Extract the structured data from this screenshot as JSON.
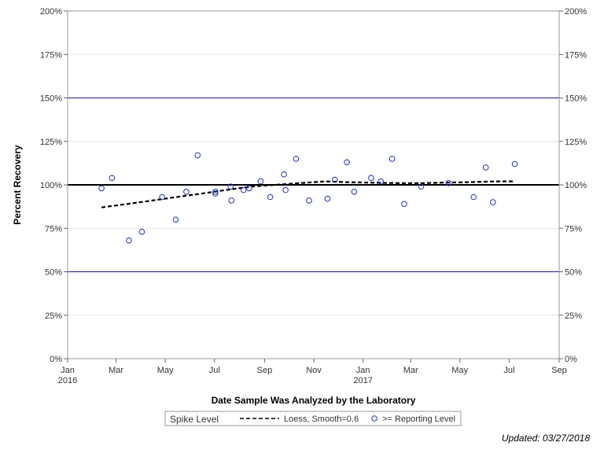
{
  "chart_data": {
    "type": "scatter",
    "title": "",
    "xlabel": "Date Sample Was Analyzed by the Laboratory",
    "ylabel": "Percent Recovery",
    "ylim": [
      0,
      200
    ],
    "xlim": [
      "2016-01-01",
      "2017-09-01"
    ],
    "y_ticks": [
      0,
      25,
      50,
      75,
      100,
      125,
      150,
      175,
      200
    ],
    "y_tick_labels": [
      "0%",
      "25%",
      "50%",
      "75%",
      "100%",
      "125%",
      "150%",
      "175%",
      "200%"
    ],
    "x_ticks": [
      {
        "date": "2016-01-01",
        "label": "Jan",
        "year": "2016"
      },
      {
        "date": "2016-03-01",
        "label": "Mar"
      },
      {
        "date": "2016-05-01",
        "label": "May"
      },
      {
        "date": "2016-07-01",
        "label": "Jul"
      },
      {
        "date": "2016-09-01",
        "label": "Sep"
      },
      {
        "date": "2016-11-01",
        "label": "Nov"
      },
      {
        "date": "2017-01-01",
        "label": "Jan",
        "year": "2017"
      },
      {
        "date": "2017-03-01",
        "label": "Mar"
      },
      {
        "date": "2017-05-01",
        "label": "May"
      },
      {
        "date": "2017-07-01",
        "label": "Jul"
      },
      {
        "date": "2017-09-01",
        "label": "Sep"
      }
    ],
    "reference_lines": [
      {
        "y": 150,
        "color": "#1a1a8c",
        "width": 1
      },
      {
        "y": 100,
        "color": "#000000",
        "width": 2
      },
      {
        "y": 50,
        "color": "#1a1a8c",
        "width": 1
      }
    ],
    "grid": "horizontal",
    "series": [
      {
        "name": ">= Reporting Level",
        "kind": "scatter",
        "marker": "open-circle",
        "color": "#1f2fbf",
        "points": [
          {
            "x": "2016-02-12",
            "y": 98
          },
          {
            "x": "2016-02-25",
            "y": 104
          },
          {
            "x": "2016-03-17",
            "y": 68
          },
          {
            "x": "2016-04-02",
            "y": 73
          },
          {
            "x": "2016-04-27",
            "y": 93
          },
          {
            "x": "2016-05-14",
            "y": 80
          },
          {
            "x": "2016-05-27",
            "y": 96
          },
          {
            "x": "2016-06-10",
            "y": 117
          },
          {
            "x": "2016-07-02",
            "y": 96
          },
          {
            "x": "2016-07-02",
            "y": 95
          },
          {
            "x": "2016-07-21",
            "y": 99
          },
          {
            "x": "2016-07-22",
            "y": 91
          },
          {
            "x": "2016-08-06",
            "y": 97
          },
          {
            "x": "2016-08-13",
            "y": 98
          },
          {
            "x": "2016-08-27",
            "y": 102
          },
          {
            "x": "2016-09-08",
            "y": 93
          },
          {
            "x": "2016-09-25",
            "y": 106
          },
          {
            "x": "2016-09-27",
            "y": 97
          },
          {
            "x": "2016-10-10",
            "y": 115
          },
          {
            "x": "2016-10-26",
            "y": 91
          },
          {
            "x": "2016-11-18",
            "y": 92
          },
          {
            "x": "2016-11-27",
            "y": 103
          },
          {
            "x": "2016-12-12",
            "y": 113
          },
          {
            "x": "2016-12-21",
            "y": 96
          },
          {
            "x": "2017-01-11",
            "y": 104
          },
          {
            "x": "2017-01-23",
            "y": 102
          },
          {
            "x": "2017-02-06",
            "y": 115
          },
          {
            "x": "2017-02-21",
            "y": 89
          },
          {
            "x": "2017-03-14",
            "y": 99
          },
          {
            "x": "2017-04-17",
            "y": 101
          },
          {
            "x": "2017-05-18",
            "y": 93
          },
          {
            "x": "2017-06-02",
            "y": 110
          },
          {
            "x": "2017-06-11",
            "y": 90
          },
          {
            "x": "2017-07-08",
            "y": 112
          }
        ]
      },
      {
        "name": "Loess, Smoothing=0.6",
        "kind": "line",
        "style": "dashed",
        "color": "#000000",
        "points": [
          {
            "x": "2016-02-12",
            "y": 87
          },
          {
            "x": "2016-03-15",
            "y": 89
          },
          {
            "x": "2016-04-15",
            "y": 91
          },
          {
            "x": "2016-05-15",
            "y": 93
          },
          {
            "x": "2016-06-15",
            "y": 95
          },
          {
            "x": "2016-07-15",
            "y": 97
          },
          {
            "x": "2016-08-15",
            "y": 99
          },
          {
            "x": "2016-09-15",
            "y": 100
          },
          {
            "x": "2016-10-15",
            "y": 101
          },
          {
            "x": "2016-11-15",
            "y": 102
          },
          {
            "x": "2016-12-15",
            "y": 101.5
          },
          {
            "x": "2017-01-15",
            "y": 101.2
          },
          {
            "x": "2017-02-15",
            "y": 101
          },
          {
            "x": "2017-03-15",
            "y": 101
          },
          {
            "x": "2017-04-15",
            "y": 101.3
          },
          {
            "x": "2017-05-15",
            "y": 101.6
          },
          {
            "x": "2017-06-15",
            "y": 102
          },
          {
            "x": "2017-07-08",
            "y": 102
          }
        ]
      }
    ],
    "legend": {
      "placement": "bottom",
      "title": "Spike Level",
      "entries": [
        "Loess, Smooth=0.6",
        ">= Reporting Level"
      ]
    }
  },
  "footnote": "Updated: 03/27/2018"
}
